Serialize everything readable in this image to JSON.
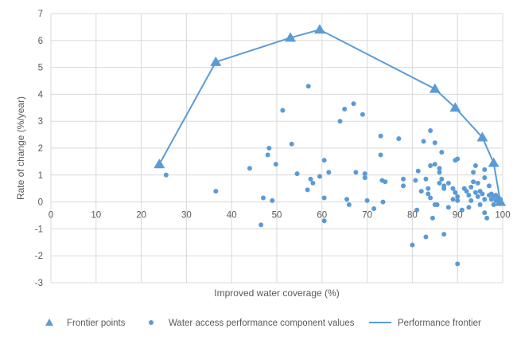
{
  "chart_data": {
    "type": "scatter",
    "title": "",
    "xlabel": "Improved water coverage (%)",
    "ylabel": "Rate of change (%/year)",
    "xlim": [
      0,
      100
    ],
    "ylim": [
      -3,
      7
    ],
    "xticks": [
      0,
      10,
      20,
      30,
      40,
      50,
      60,
      70,
      80,
      90,
      100
    ],
    "yticks": [
      -3,
      -2,
      -1,
      0,
      1,
      2,
      3,
      4,
      5,
      6,
      7
    ],
    "grid": true,
    "legend_position": "bottom",
    "colors": {
      "series": "#5B9BD5",
      "grid": "#D9D9D9",
      "text": "#595959"
    },
    "series": [
      {
        "name": "Frontier points",
        "marker": "triangle",
        "points": [
          [
            24,
            1.4
          ],
          [
            36.5,
            5.2
          ],
          [
            53,
            6.1
          ],
          [
            59.5,
            6.4
          ],
          [
            85,
            4.2
          ],
          [
            89.5,
            3.5
          ],
          [
            95.5,
            2.4
          ],
          [
            98,
            1.45
          ],
          [
            99.5,
            0
          ]
        ]
      },
      {
        "name": "Water access performance component values",
        "marker": "circle",
        "points": [
          [
            25.5,
            1.0
          ],
          [
            36.5,
            0.4
          ],
          [
            44,
            1.25
          ],
          [
            46.5,
            -0.85
          ],
          [
            47,
            0.15
          ],
          [
            48,
            1.75
          ],
          [
            48.3,
            2.0
          ],
          [
            49,
            0.05
          ],
          [
            49.8,
            1.4
          ],
          [
            51.3,
            3.4
          ],
          [
            53.3,
            2.15
          ],
          [
            54.5,
            1.05
          ],
          [
            56.8,
            0.45
          ],
          [
            57,
            4.3
          ],
          [
            57.5,
            0.85
          ],
          [
            58,
            0.7
          ],
          [
            59.5,
            0.95
          ],
          [
            60.5,
            1.55
          ],
          [
            60.5,
            0.15
          ],
          [
            60.5,
            -0.7
          ],
          [
            61.5,
            1.1
          ],
          [
            64,
            3.0
          ],
          [
            65,
            3.45
          ],
          [
            65.5,
            0.1
          ],
          [
            66,
            -0.1
          ],
          [
            67,
            3.65
          ],
          [
            67.5,
            1.1
          ],
          [
            69,
            3.25
          ],
          [
            69.5,
            1.05
          ],
          [
            69.5,
            0.9
          ],
          [
            70,
            0.05
          ],
          [
            71.5,
            -0.25
          ],
          [
            73,
            1.75
          ],
          [
            73.3,
            0.8
          ],
          [
            73,
            2.45
          ],
          [
            74,
            0.75
          ],
          [
            73.5,
            0
          ],
          [
            77,
            2.35
          ],
          [
            78,
            0.85
          ],
          [
            78,
            0.6
          ],
          [
            80,
            -1.6
          ],
          [
            80.7,
            0.8
          ],
          [
            81,
            -0.3
          ],
          [
            81.3,
            1.15
          ],
          [
            82,
            0.4
          ],
          [
            82.5,
            2.25
          ],
          [
            83,
            0.85
          ],
          [
            83,
            -1.3
          ],
          [
            83.5,
            0.5
          ],
          [
            83.5,
            0.3
          ],
          [
            84,
            2.65
          ],
          [
            84,
            1.35
          ],
          [
            84,
            0.15
          ],
          [
            84.5,
            -0.6
          ],
          [
            85,
            -0.1
          ],
          [
            85,
            2.2
          ],
          [
            85,
            1.4
          ],
          [
            85.5,
            -0.1
          ],
          [
            86,
            0.7
          ],
          [
            86,
            1.25
          ],
          [
            86,
            1.1
          ],
          [
            86.5,
            1.85
          ],
          [
            86.5,
            0.85
          ],
          [
            87,
            0.5
          ],
          [
            87,
            -1.2
          ],
          [
            87,
            0.6
          ],
          [
            88,
            -0.2
          ],
          [
            88,
            0.7
          ],
          [
            89,
            0.1
          ],
          [
            89,
            0.5
          ],
          [
            89.5,
            1.55
          ],
          [
            89.5,
            0.35
          ],
          [
            90,
            1.6
          ],
          [
            90,
            -2.3
          ],
          [
            90,
            0.2
          ],
          [
            90,
            0.05
          ],
          [
            91,
            -0.3
          ],
          [
            91.5,
            0.5
          ],
          [
            92,
            0.4
          ],
          [
            92.5,
            0.25
          ],
          [
            92.5,
            -0.2
          ],
          [
            93,
            0.05
          ],
          [
            93,
            0.55
          ],
          [
            93.5,
            1.1
          ],
          [
            93.5,
            0.75
          ],
          [
            94,
            0.35
          ],
          [
            94,
            1.35
          ],
          [
            94.5,
            0.7
          ],
          [
            94.5,
            0.2
          ],
          [
            95,
            0.4
          ],
          [
            95,
            -0.1
          ],
          [
            95.5,
            0.3
          ],
          [
            96,
            0.9
          ],
          [
            96,
            1.2
          ],
          [
            96,
            0.1
          ],
          [
            96,
            -0.4
          ],
          [
            96.5,
            -0.6
          ],
          [
            97,
            0.6
          ],
          [
            97,
            0.25
          ],
          [
            97.5,
            0.1
          ],
          [
            97.5,
            0.3
          ],
          [
            98,
            0.2
          ],
          [
            98,
            -0.1
          ],
          [
            98.5,
            0.25
          ],
          [
            98.5,
            0.05
          ],
          [
            99,
            0.15
          ],
          [
            99,
            0.05
          ],
          [
            99.5,
            0.1
          ]
        ]
      },
      {
        "name": "Performance frontier",
        "marker": "line",
        "points": [
          [
            24,
            1.4
          ],
          [
            36.5,
            5.2
          ],
          [
            53,
            6.1
          ],
          [
            59.5,
            6.4
          ],
          [
            85,
            4.2
          ],
          [
            89.5,
            3.5
          ],
          [
            95.5,
            2.4
          ],
          [
            98,
            1.45
          ],
          [
            99.5,
            0
          ]
        ]
      }
    ]
  }
}
